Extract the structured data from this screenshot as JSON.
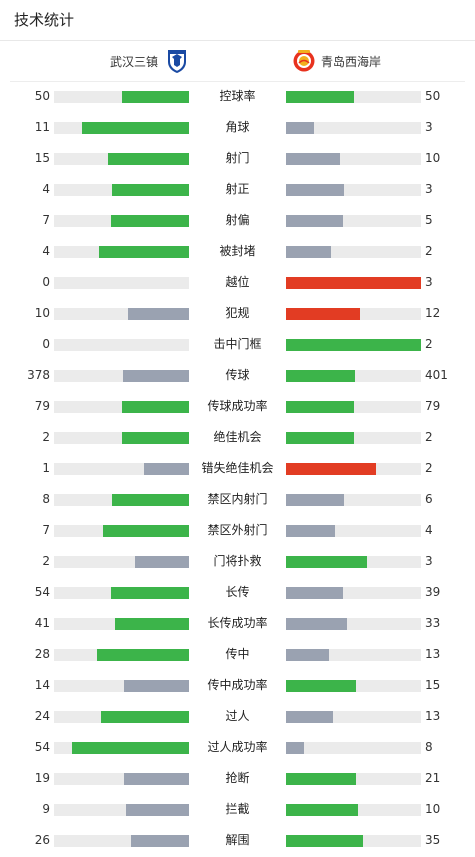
{
  "section_title": "技术统计",
  "home_team": {
    "name": "武汉三镇",
    "crest_color": "#1a4aa3"
  },
  "away_team": {
    "name": "青岛西海岸",
    "crest_color": "#e8321e"
  },
  "colors": {
    "win": "#3cb44a",
    "lose": "#9aa2b1",
    "away_highlight": "#e23c23",
    "track": "#ebebeb"
  },
  "stats": [
    {
      "label": "控球率",
      "home": "50",
      "away": "50",
      "home_frac": 0.5,
      "away_frac": 0.5,
      "home_color": "win",
      "away_color": "win"
    },
    {
      "label": "角球",
      "home": "11",
      "away": "3",
      "home_frac": 0.79,
      "away_frac": 0.21,
      "home_color": "win",
      "away_color": "lose"
    },
    {
      "label": "射门",
      "home": "15",
      "away": "10",
      "home_frac": 0.6,
      "away_frac": 0.4,
      "home_color": "win",
      "away_color": "lose"
    },
    {
      "label": "射正",
      "home": "4",
      "away": "3",
      "home_frac": 0.57,
      "away_frac": 0.43,
      "home_color": "win",
      "away_color": "lose"
    },
    {
      "label": "射偏",
      "home": "7",
      "away": "5",
      "home_frac": 0.58,
      "away_frac": 0.42,
      "home_color": "win",
      "away_color": "lose"
    },
    {
      "label": "被封堵",
      "home": "4",
      "away": "2",
      "home_frac": 0.67,
      "away_frac": 0.33,
      "home_color": "win",
      "away_color": "lose"
    },
    {
      "label": "越位",
      "home": "0",
      "away": "3",
      "home_frac": 0,
      "away_frac": 1,
      "home_color": "lose",
      "away_color": "red"
    },
    {
      "label": "犯规",
      "home": "10",
      "away": "12",
      "home_frac": 0.45,
      "away_frac": 0.55,
      "home_color": "lose",
      "away_color": "red"
    },
    {
      "label": "击中门框",
      "home": "0",
      "away": "2",
      "home_frac": 0,
      "away_frac": 1,
      "home_color": "lose",
      "away_color": "win"
    },
    {
      "label": "传球",
      "home": "378",
      "away": "401",
      "home_frac": 0.49,
      "away_frac": 0.51,
      "home_color": "lose",
      "away_color": "win"
    },
    {
      "label": "传球成功率",
      "home": "79",
      "away": "79",
      "home_frac": 0.5,
      "away_frac": 0.5,
      "home_color": "win",
      "away_color": "win"
    },
    {
      "label": "绝佳机会",
      "home": "2",
      "away": "2",
      "home_frac": 0.5,
      "away_frac": 0.5,
      "home_color": "win",
      "away_color": "win"
    },
    {
      "label": "错失绝佳机会",
      "home": "1",
      "away": "2",
      "home_frac": 0.33,
      "away_frac": 0.67,
      "home_color": "lose",
      "away_color": "red"
    },
    {
      "label": "禁区内射门",
      "home": "8",
      "away": "6",
      "home_frac": 0.57,
      "away_frac": 0.43,
      "home_color": "win",
      "away_color": "lose"
    },
    {
      "label": "禁区外射门",
      "home": "7",
      "away": "4",
      "home_frac": 0.64,
      "away_frac": 0.36,
      "home_color": "win",
      "away_color": "lose"
    },
    {
      "label": "门将扑救",
      "home": "2",
      "away": "3",
      "home_frac": 0.4,
      "away_frac": 0.6,
      "home_color": "lose",
      "away_color": "win"
    },
    {
      "label": "长传",
      "home": "54",
      "away": "39",
      "home_frac": 0.58,
      "away_frac": 0.42,
      "home_color": "win",
      "away_color": "lose"
    },
    {
      "label": "长传成功率",
      "home": "41",
      "away": "33",
      "home_frac": 0.55,
      "away_frac": 0.45,
      "home_color": "win",
      "away_color": "lose"
    },
    {
      "label": "传中",
      "home": "28",
      "away": "13",
      "home_frac": 0.68,
      "away_frac": 0.32,
      "home_color": "win",
      "away_color": "lose"
    },
    {
      "label": "传中成功率",
      "home": "14",
      "away": "15",
      "home_frac": 0.48,
      "away_frac": 0.52,
      "home_color": "lose",
      "away_color": "win"
    },
    {
      "label": "过人",
      "home": "24",
      "away": "13",
      "home_frac": 0.65,
      "away_frac": 0.35,
      "home_color": "win",
      "away_color": "lose"
    },
    {
      "label": "过人成功率",
      "home": "54",
      "away": "8",
      "home_frac": 0.87,
      "away_frac": 0.13,
      "home_color": "win",
      "away_color": "lose"
    },
    {
      "label": "抢断",
      "home": "19",
      "away": "21",
      "home_frac": 0.48,
      "away_frac": 0.52,
      "home_color": "lose",
      "away_color": "win"
    },
    {
      "label": "拦截",
      "home": "9",
      "away": "10",
      "home_frac": 0.47,
      "away_frac": 0.53,
      "home_color": "lose",
      "away_color": "win"
    },
    {
      "label": "解围",
      "home": "26",
      "away": "35",
      "home_frac": 0.43,
      "away_frac": 0.57,
      "home_color": "lose",
      "away_color": "win"
    }
  ]
}
